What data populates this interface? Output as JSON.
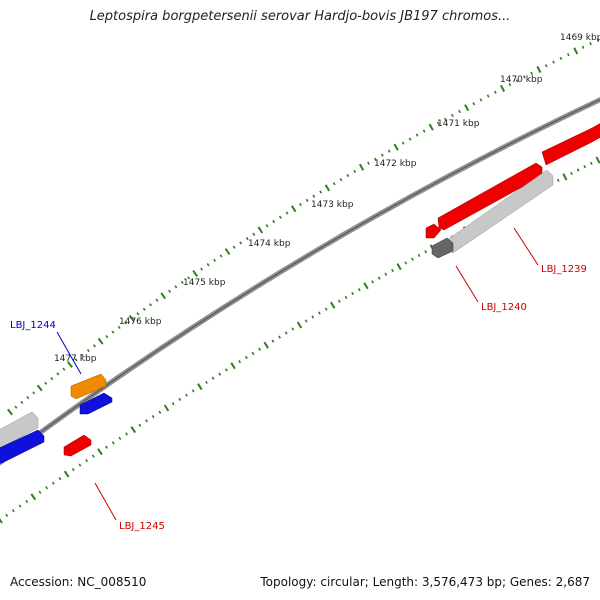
{
  "title": "Leptospira borgpetersenii serovar Hardjo-bovis JB197 chromos...",
  "footer": {
    "accession": "Accession: NC_008510",
    "summary": "Topology: circular; Length: 3,576,473 bp; Genes: 2,687"
  },
  "colors": {
    "backbone": "#808080",
    "ticks": "#2e7d1f",
    "gene_red": "#ee0000",
    "gene_blue": "#1010dd",
    "gene_orange": "#f08a00",
    "gene_gray": "#c4c4c4",
    "gene_darkgray": "#666666",
    "label_red": "#cc0000",
    "label_blue": "#0000cc"
  },
  "ticks": {
    "labels": [
      "1469 kbp",
      "1470 kbp",
      "1471 kbp",
      "1472 kbp",
      "1473 kbp",
      "1474 kbp",
      "1475 kbp",
      "1476 kbp",
      "1477 kbp"
    ]
  },
  "gene_labels": [
    {
      "id": "LBJ_1239",
      "color": "red"
    },
    {
      "id": "LBJ_1240",
      "color": "red"
    },
    {
      "id": "LBJ_1244",
      "color": "blue"
    },
    {
      "id": "LBJ_1245",
      "color": "red"
    }
  ]
}
